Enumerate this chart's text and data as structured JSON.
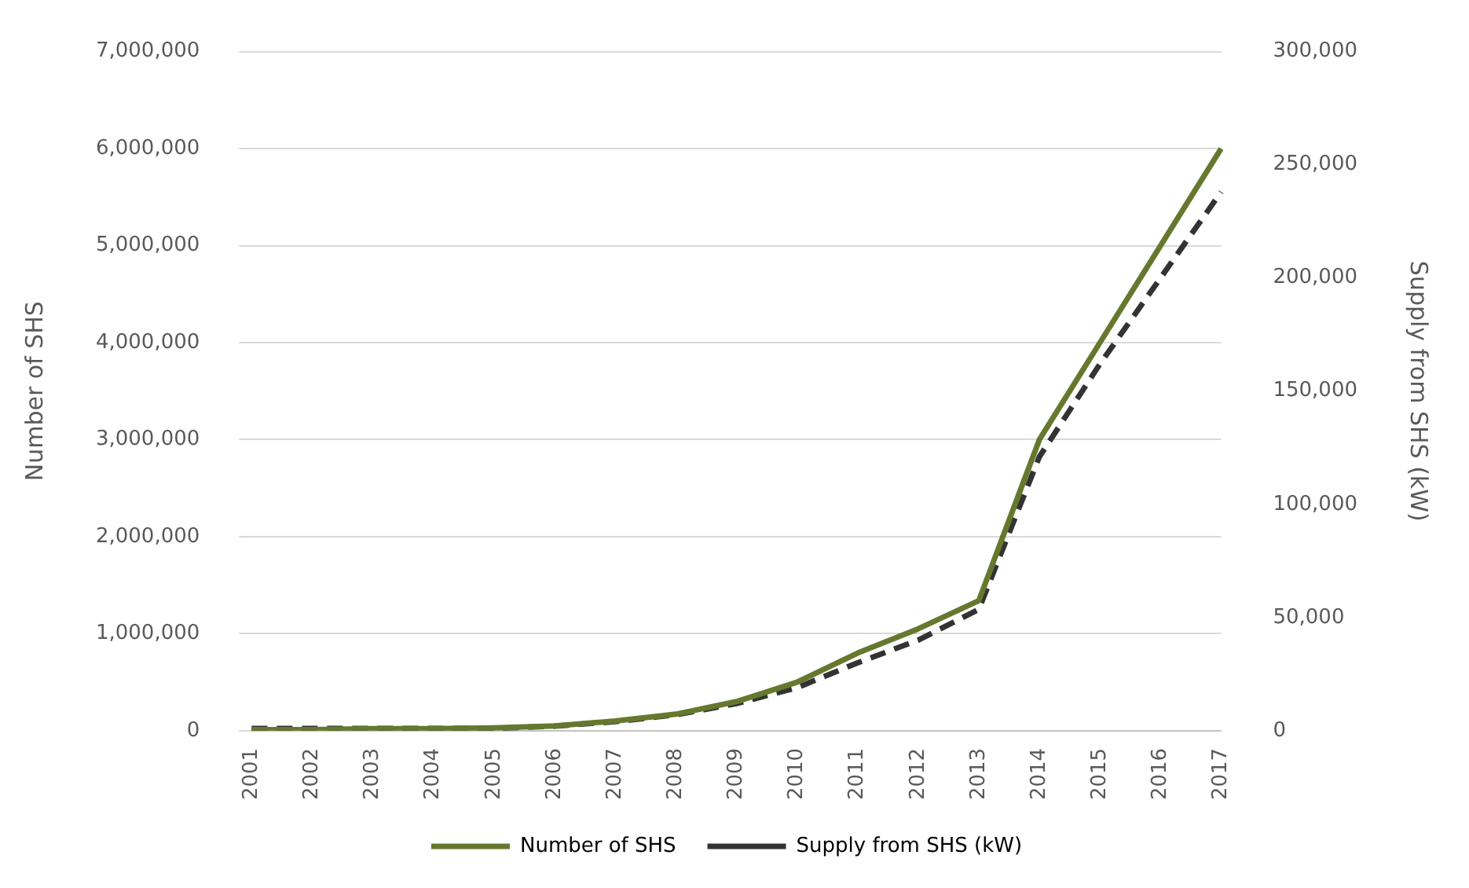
{
  "chart_data": {
    "type": "line",
    "categories": [
      "2001",
      "2002",
      "2003",
      "2004",
      "2005",
      "2006",
      "2007",
      "2008",
      "2009",
      "2010",
      "2011",
      "2012",
      "2013",
      "2014",
      "2015",
      "2016",
      "2017"
    ],
    "series": [
      {
        "name": "Number of SHS",
        "color": "#66782e",
        "line_style": "solid",
        "values": [
          10000,
          10000,
          20000,
          20000,
          30000,
          50000,
          100000,
          170000,
          300000,
          500000,
          800000,
          1050000,
          1340000,
          3000000,
          4000000,
          5000000,
          6000000
        ]
      },
      {
        "name": "Supply from SHS (kW)",
        "color": "#333333",
        "line_style": "dashed",
        "axis": "y2",
        "values": [
          1000,
          1000,
          1000,
          1000,
          1000,
          2000,
          4000,
          7000,
          12000,
          19000,
          30000,
          40000,
          53600,
          121000,
          162000,
          200000,
          238000
        ]
      }
    ],
    "ylabel": "Number of SHS",
    "y2label": "Supply from SHS (kW)",
    "ylim": [
      0,
      7000000
    ],
    "yticks": [
      0,
      {
        "value": 1000000,
        "label": "1,000,000"
      },
      {
        "value": 2000000,
        "label": "2,000,000"
      },
      {
        "value": 3000000,
        "label": "3,000,000"
      },
      {
        "value": 4000000,
        "label": "4,000,000"
      },
      {
        "value": 5000000,
        "label": "5,000,000"
      },
      {
        "value": 6000000,
        "label": "6,000,000"
      },
      {
        "value": 7000000,
        "label": "7,000,000"
      }
    ],
    "y2lim": [
      0,
      300000
    ],
    "y2ticks": [
      0,
      {
        "value": 50000,
        "label": "50,000"
      },
      {
        "value": 100000,
        "label": "100,000"
      },
      {
        "value": 150000,
        "label": "150,000"
      },
      {
        "value": 200000,
        "label": "200,000"
      },
      {
        "value": 250000,
        "label": "250,000"
      },
      {
        "value": 300000,
        "label": "300,000"
      }
    ],
    "grid": "y",
    "legend": "bottom",
    "marker": "none"
  }
}
